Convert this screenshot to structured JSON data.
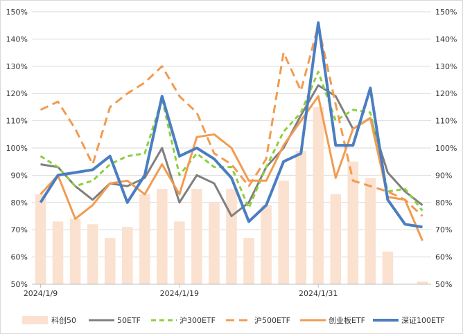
{
  "chart_data": {
    "type": "bar+line",
    "y_axis": {
      "min": 0.5,
      "max": 1.5,
      "step": 0.1,
      "tick_labels": [
        "50%",
        "60%",
        "70%",
        "80%",
        "90%",
        "100%",
        "110%",
        "120%",
        "130%",
        "140%",
        "150%"
      ],
      "position": "both"
    },
    "x_tick_labels": [
      {
        "index": 0,
        "label": "2024/1/9"
      },
      {
        "index": 8,
        "label": "2024/1/19"
      },
      {
        "index": 16,
        "label": "2024/1/31"
      }
    ],
    "num_points": 23,
    "grid": true,
    "legend_position": "bottom",
    "series": [
      {
        "name": "科创50",
        "type": "bar",
        "color": "#FBE1CF",
        "values": [
          0.83,
          0.73,
          0.74,
          0.72,
          0.67,
          0.71,
          0.83,
          0.85,
          0.73,
          0.85,
          0.8,
          0.85,
          0.67,
          0.79,
          0.88,
          0.99,
          1.15,
          0.83,
          0.95,
          0.89,
          0.62,
          0.5,
          0.51
        ]
      },
      {
        "name": "50ETF",
        "type": "line",
        "color": "#7F7F7F",
        "dash": "solid",
        "values": [
          0.94,
          0.93,
          0.86,
          0.81,
          0.87,
          0.86,
          0.89,
          1.0,
          0.8,
          0.9,
          0.87,
          0.75,
          0.8,
          0.93,
          1.0,
          1.12,
          1.23,
          1.19,
          1.07,
          1.11,
          0.91,
          0.84,
          0.79
        ]
      },
      {
        "name": "沪300ETF",
        "type": "line",
        "color": "#8DCF3F",
        "dash": "short",
        "values": [
          0.97,
          0.93,
          0.86,
          0.88,
          0.94,
          0.97,
          0.98,
          1.18,
          0.9,
          0.98,
          0.93,
          0.93,
          0.78,
          0.93,
          1.06,
          1.13,
          1.28,
          1.1,
          1.14,
          1.13,
          0.84,
          0.85,
          0.77
        ]
      },
      {
        "name": "沪500ETF",
        "type": "line",
        "color": "#F29B50",
        "dash": "long",
        "values": [
          1.14,
          1.17,
          1.07,
          0.94,
          1.15,
          1.2,
          1.24,
          1.3,
          1.19,
          1.13,
          0.98,
          0.94,
          0.86,
          0.96,
          1.35,
          1.21,
          1.45,
          1.16,
          0.88,
          0.86,
          0.84,
          0.81,
          0.75
        ]
      },
      {
        "name": "创业板ETF",
        "type": "line",
        "color": "#F29B50",
        "dash": "solid",
        "values": [
          0.83,
          0.9,
          0.74,
          0.79,
          0.87,
          0.88,
          0.83,
          0.94,
          0.83,
          1.04,
          1.05,
          1.0,
          0.88,
          0.88,
          1.01,
          1.1,
          1.19,
          0.89,
          1.07,
          1.11,
          0.82,
          0.81,
          0.66
        ]
      },
      {
        "name": "深证100ETF",
        "type": "line",
        "color": "#4A7EC1",
        "dash": "solid",
        "values": [
          0.8,
          0.9,
          0.91,
          0.92,
          0.97,
          0.8,
          0.9,
          1.19,
          0.97,
          1.0,
          0.96,
          0.89,
          0.73,
          0.79,
          0.95,
          0.98,
          1.46,
          1.01,
          1.01,
          1.22,
          0.81,
          0.72,
          0.71
        ]
      }
    ]
  }
}
